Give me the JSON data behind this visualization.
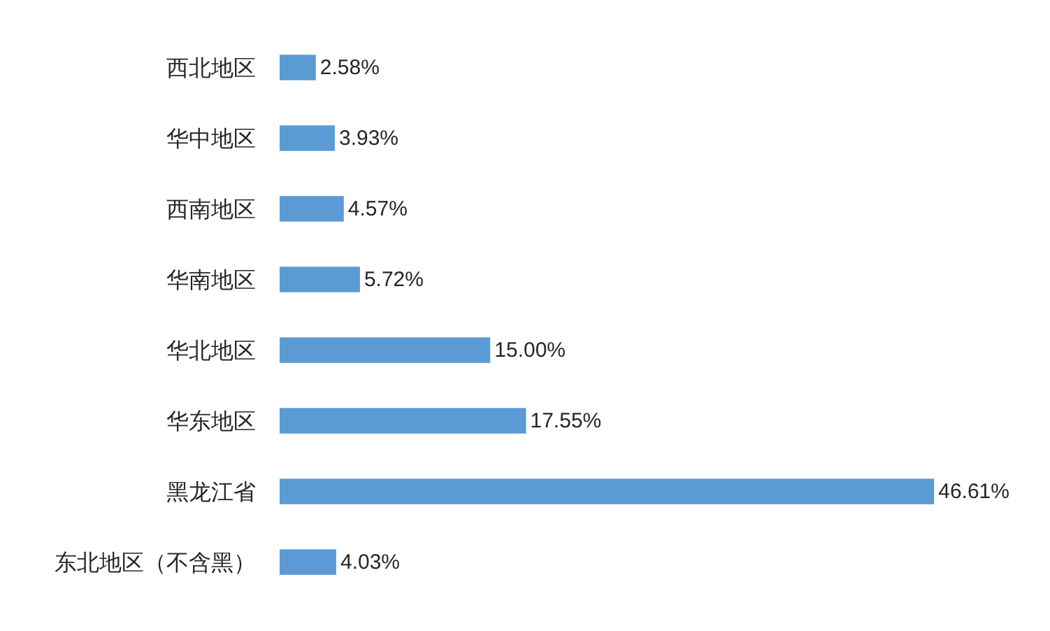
{
  "chart_data": {
    "type": "bar",
    "orientation": "horizontal",
    "categories": [
      "西北地区",
      "华中地区",
      "西南地区",
      "华南地区",
      "华北地区",
      "华东地区",
      "黑龙江省",
      "东北地区（不含黑）"
    ],
    "values": [
      2.58,
      3.93,
      4.57,
      5.72,
      15.0,
      17.55,
      46.61,
      4.03
    ],
    "value_labels": [
      "2.58%",
      "3.93%",
      "4.57%",
      "5.72%",
      "15.00%",
      "17.55%",
      "46.61%",
      "4.03%"
    ],
    "color": "#5b9bd5"
  }
}
